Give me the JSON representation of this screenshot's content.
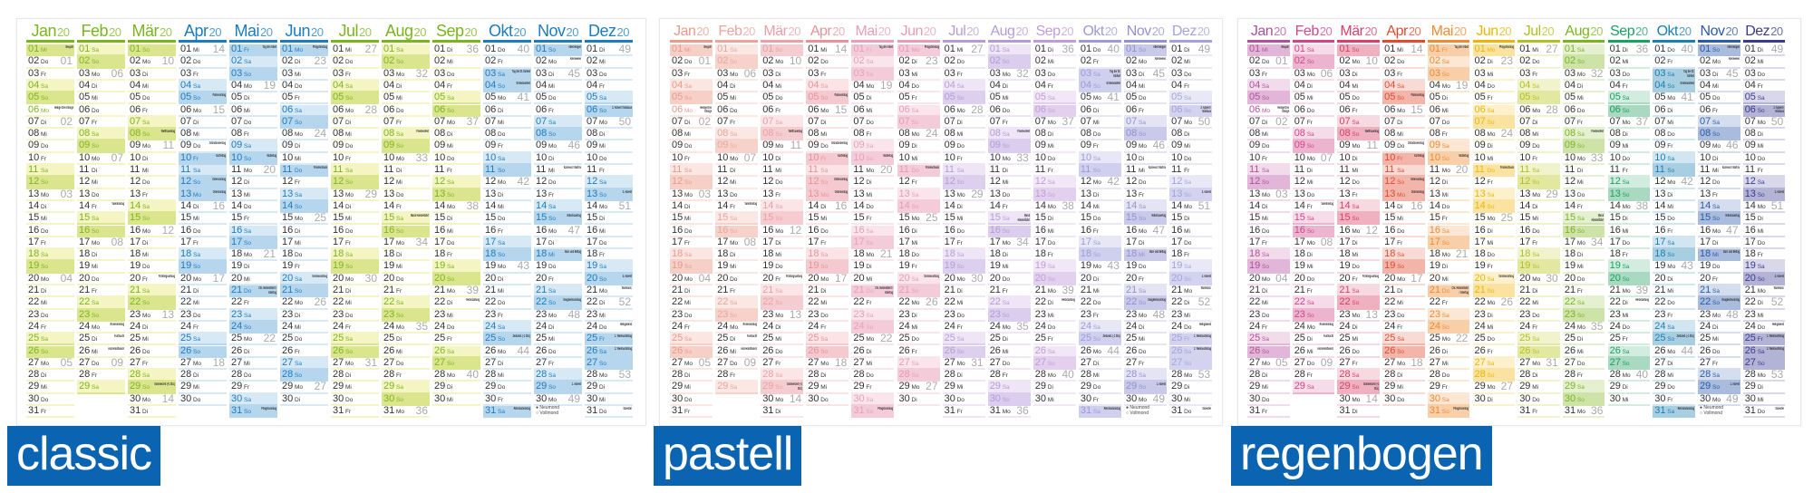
{
  "year_suffix": "20",
  "months": [
    "Jan",
    "Feb",
    "Mär",
    "Apr",
    "Mai",
    "Jun",
    "Jul",
    "Aug",
    "Sep",
    "Okt",
    "Nov",
    "Dez"
  ],
  "weekdays": [
    "So",
    "Mo",
    "Di",
    "Mi",
    "Do",
    "Fr",
    "Sa"
  ],
  "holidays": [
    {
      "m": 1,
      "d": 1,
      "name": "Neujahr",
      "public": true
    },
    {
      "m": 1,
      "d": 6,
      "name": "Heilige Drei Könige",
      "public": false
    },
    {
      "m": 2,
      "d": 14,
      "name": "Valentinstag",
      "public": false
    },
    {
      "m": 2,
      "d": 24,
      "name": "Rosenmontag",
      "public": false
    },
    {
      "m": 2,
      "d": 25,
      "name": "Fastnacht",
      "public": false
    },
    {
      "m": 2,
      "d": 26,
      "name": "Aschermittwoch",
      "public": false
    },
    {
      "m": 3,
      "d": 8,
      "name": "Weltfrauentag",
      "public": true
    },
    {
      "m": 3,
      "d": 20,
      "name": "Frühlingsanfang",
      "public": false
    },
    {
      "m": 3,
      "d": 29,
      "name": "Sommerzeit (+1 Std.)",
      "public": false
    },
    {
      "m": 4,
      "d": 5,
      "name": "Palmsonntag",
      "public": false
    },
    {
      "m": 4,
      "d": 9,
      "name": "Gründonnerstag",
      "public": false
    },
    {
      "m": 4,
      "d": 10,
      "name": "Karfreitag",
      "public": true
    },
    {
      "m": 4,
      "d": 12,
      "name": "Ostersonntag",
      "public": true
    },
    {
      "m": 4,
      "d": 13,
      "name": "Ostermontag",
      "public": true
    },
    {
      "m": 5,
      "d": 1,
      "name": "Tag der Arbeit",
      "public": true
    },
    {
      "m": 5,
      "d": 10,
      "name": "Muttertag",
      "public": false
    },
    {
      "m": 5,
      "d": 21,
      "name": "Chr. Himmelfahrt / Vatertag",
      "public": true
    },
    {
      "m": 5,
      "d": 31,
      "name": "Pfingstsonntag",
      "public": true
    },
    {
      "m": 6,
      "d": 1,
      "name": "Pfingstmontag",
      "public": true
    },
    {
      "m": 6,
      "d": 11,
      "name": "Fronleichnam",
      "public": true
    },
    {
      "m": 6,
      "d": 20,
      "name": "Sommeranfang",
      "public": false
    },
    {
      "m": 8,
      "d": 8,
      "name": "Friedensfest",
      "public": false
    },
    {
      "m": 8,
      "d": 15,
      "name": "Mariä Himmelfahrt",
      "public": false
    },
    {
      "m": 9,
      "d": 22,
      "name": "Herbstanfang",
      "public": false
    },
    {
      "m": 10,
      "d": 3,
      "name": "Tag der Dt. Einheit",
      "public": true
    },
    {
      "m": 10,
      "d": 4,
      "name": "Erntedankfest",
      "public": false
    },
    {
      "m": 10,
      "d": 25,
      "name": "Zeitumst. (-1 Std.)",
      "public": false
    },
    {
      "m": 10,
      "d": 31,
      "name": "Reformationstag",
      "public": true
    },
    {
      "m": 11,
      "d": 1,
      "name": "Allerheiligen",
      "public": true
    },
    {
      "m": 11,
      "d": 2,
      "name": "Allerseelen",
      "public": false
    },
    {
      "m": 11,
      "d": 11,
      "name": "Karneval / Martini",
      "public": false
    },
    {
      "m": 11,
      "d": 15,
      "name": "Volkstrauertag",
      "public": false
    },
    {
      "m": 11,
      "d": 18,
      "name": "Buß- und Bettag",
      "public": true
    },
    {
      "m": 11,
      "d": 22,
      "name": "Ewigkeitssonntag",
      "public": false
    },
    {
      "m": 11,
      "d": 29,
      "name": "1. Advent",
      "public": false
    },
    {
      "m": 12,
      "d": 6,
      "name": "2. Advent / Nikolaus",
      "public": false
    },
    {
      "m": 12,
      "d": 13,
      "name": "3. Advent",
      "public": false
    },
    {
      "m": 12,
      "d": 20,
      "name": "4. Advent",
      "public": false
    },
    {
      "m": 12,
      "d": 21,
      "name": "Winteranf.",
      "public": false
    },
    {
      "m": 12,
      "d": 24,
      "name": "Heiligabend",
      "public": false
    },
    {
      "m": 12,
      "d": 25,
      "name": "1. Weihnachtstag",
      "public": true
    },
    {
      "m": 12,
      "d": 26,
      "name": "2. Weihnachtstag",
      "public": true
    },
    {
      "m": 12,
      "d": 31,
      "name": "Silvester",
      "public": false
    }
  ],
  "legend": {
    "new_moon": "● Neumond",
    "full_moon": "○ Vollmond"
  },
  "themes": [
    {
      "id": "classic",
      "label": "classic",
      "colors": [
        "#7ab51d",
        "#7ab51d",
        "#7ab51d",
        "#1b7cc0",
        "#1b7cc0",
        "#1b7cc0",
        "#7ab51d",
        "#7ab51d",
        "#7ab51d",
        "#1b7cc0",
        "#1b7cc0",
        "#1b7cc0"
      ],
      "sat_bg": [
        "#f4f5c3",
        "#f4f5c3",
        "#f4f5c3",
        "#d8e9f6",
        "#d8e9f6",
        "#d8e9f6",
        "#f4f5c3",
        "#f4f5c3",
        "#f4f5c3",
        "#d8e9f6",
        "#d8e9f6",
        "#d8e9f6"
      ],
      "sun_bg": [
        "#dbe58e",
        "#dbe58e",
        "#dbe58e",
        "#b6d6ee",
        "#b6d6ee",
        "#b6d6ee",
        "#dbe58e",
        "#dbe58e",
        "#dbe58e",
        "#b6d6ee",
        "#b6d6ee",
        "#b6d6ee"
      ]
    },
    {
      "id": "pastell",
      "label": "pastell",
      "colors": [
        "#e89a8c",
        "#eba59b",
        "#e9a0a6",
        "#e8939c",
        "#e69fb6",
        "#e59cb5",
        "#b79cd3",
        "#b59bd6",
        "#c09dd6",
        "#9d9ad6",
        "#9291d0",
        "#a3a2dc"
      ],
      "sat_bg": [
        "#fbe6e1",
        "#fbe7e3",
        "#fbe5e7",
        "#fbe3e6",
        "#fbe5ec",
        "#fbe5ec",
        "#eee6f6",
        "#eee5f6",
        "#f1e7f6",
        "#e7e7f6",
        "#e4e4f4",
        "#e8e8f7"
      ],
      "sun_bg": [
        "#f6cfc6",
        "#f6d2cb",
        "#f5cdd1",
        "#f4c9cf",
        "#f4ccd9",
        "#f4cbd9",
        "#ddcfee",
        "#dbcdee",
        "#e2d0ee",
        "#cfcfee",
        "#c9c9ea",
        "#d3d3f0"
      ]
    },
    {
      "id": "regenbogen",
      "label": "regenbogen",
      "colors": [
        "#b0509a",
        "#d0468a",
        "#d8406a",
        "#e04a30",
        "#f08a30",
        "#f0b400",
        "#b0c020",
        "#7ab51d",
        "#18a060",
        "#1a80b0",
        "#2a5aa8",
        "#3a3a90"
      ],
      "sat_bg": [
        "#f2dcec",
        "#f6dbe8",
        "#f7d9e1",
        "#f9dbd5",
        "#fce6d4",
        "#fdf0cc",
        "#f0f3cc",
        "#e4f0d0",
        "#d2ecdf",
        "#d1e6f0",
        "#d4deee",
        "#d8d8ea"
      ],
      "sun_bg": [
        "#e2b6d8",
        "#ecb4cf",
        "#efb0c0",
        "#f3b5aa",
        "#f8cfa9",
        "#fae3a0",
        "#e2e8a0",
        "#cde3a8",
        "#a9d9c0",
        "#a8cee2",
        "#aabcdd",
        "#b3b3d6"
      ]
    }
  ]
}
